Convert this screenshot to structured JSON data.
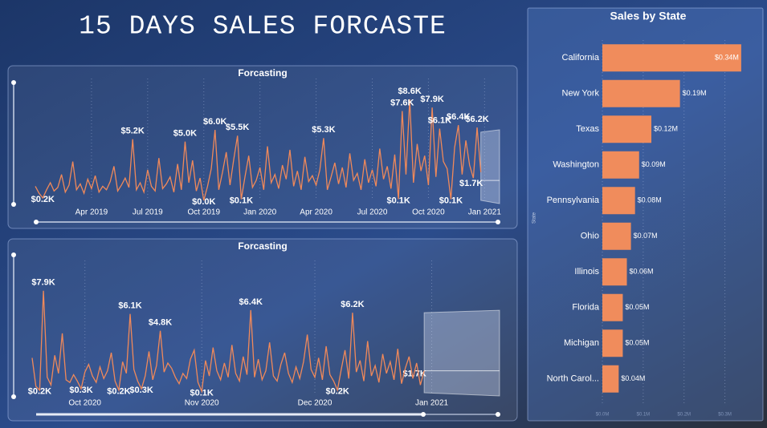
{
  "title": "15 DAYS SALES FORCASTE",
  "chart_data": [
    {
      "type": "line",
      "title": "Forcasting",
      "color": "#f0895a",
      "grid": true,
      "xlim": [
        0,
        124
      ],
      "ylim": [
        0,
        9000
      ],
      "xticks": [
        {
          "value": 15,
          "label": "Apr 2019"
        },
        {
          "value": 30,
          "label": "Jul 2019"
        },
        {
          "value": 45,
          "label": "Oct 2019"
        },
        {
          "value": 60,
          "label": "Jan 2020"
        },
        {
          "value": 75,
          "label": "Apr 2020"
        },
        {
          "value": 90,
          "label": "Jul 2020"
        },
        {
          "value": 105,
          "label": "Oct 2020"
        },
        {
          "value": 120,
          "label": "Jan 2021"
        }
      ],
      "values": [
        1200,
        600,
        200,
        900,
        1500,
        800,
        1100,
        2200,
        700,
        1300,
        3300,
        900,
        1400,
        600,
        1800,
        1000,
        2100,
        700,
        1200,
        900,
        1600,
        2900,
        800,
        1300,
        1900,
        1100,
        5200,
        900,
        1500,
        700,
        2600,
        1200,
        800,
        3600,
        1000,
        1400,
        2000,
        700,
        3100,
        900,
        5000,
        1500,
        3400,
        800,
        1900,
        0,
        1200,
        2700,
        6000,
        900,
        2400,
        4100,
        1300,
        3500,
        5500,
        100,
        2000,
        3800,
        1100,
        1700,
        2800,
        900,
        4600,
        1500,
        2200,
        1000,
        3000,
        1800,
        4300,
        1200,
        2500,
        900,
        3700,
        1600,
        2100,
        1300,
        2600,
        5300,
        900,
        2000,
        3200,
        1400,
        2800,
        1100,
        4000,
        1700,
        2300,
        900,
        3500,
        1500,
        2600,
        1200,
        4400,
        1800,
        2900,
        1000,
        3900,
        100,
        7600,
        2200,
        8600,
        1500,
        4800,
        2500,
        3800,
        1300,
        7900,
        2000,
        6100,
        3300,
        2700,
        100,
        4500,
        6400,
        2200,
        5100,
        3000,
        1900,
        6200,
        2400
      ],
      "value_labels": [
        null,
        null,
        "$0.2K",
        null,
        null,
        null,
        null,
        null,
        null,
        null,
        null,
        null,
        null,
        null,
        null,
        null,
        null,
        null,
        null,
        null,
        null,
        null,
        null,
        null,
        null,
        null,
        "$5.2K",
        null,
        null,
        null,
        null,
        null,
        null,
        null,
        null,
        null,
        null,
        null,
        null,
        null,
        "$5.0K",
        null,
        null,
        null,
        null,
        "$0.0K",
        null,
        null,
        "$6.0K",
        null,
        null,
        null,
        null,
        null,
        "$5.5K",
        "$0.1K",
        null,
        null,
        null,
        null,
        null,
        null,
        null,
        null,
        null,
        null,
        null,
        null,
        null,
        null,
        null,
        null,
        null,
        null,
        null,
        null,
        null,
        "$5.3K",
        null,
        null,
        null,
        null,
        null,
        null,
        null,
        null,
        null,
        null,
        null,
        null,
        null,
        null,
        null,
        null,
        null,
        null,
        null,
        "$0.1K",
        "$7.6K",
        null,
        "$8.6K",
        null,
        null,
        null,
        null,
        null,
        "$7.9K",
        null,
        "$6.1K",
        null,
        null,
        "$0.1K",
        null,
        "$6.4K",
        null,
        null,
        null,
        null,
        "$6.2K",
        null
      ],
      "forecast": {
        "value": 1700,
        "value_label": "$1.7K",
        "upper": 5800,
        "lower": 0
      }
    },
    {
      "type": "line",
      "title": "Forcasting",
      "color": "#f0895a",
      "grid": true,
      "xlim": [
        0,
        124
      ],
      "ylim": [
        0,
        9000
      ],
      "xticks": [
        {
          "value": 14,
          "label": "Oct 2020"
        },
        {
          "value": 45,
          "label": "Nov 2020"
        },
        {
          "value": 75,
          "label": "Dec 2020"
        },
        {
          "value": 106,
          "label": "Jan 2021"
        }
      ],
      "values": [
        2700,
        500,
        200,
        7900,
        1200,
        600,
        2900,
        1500,
        4600,
        1000,
        800,
        1400,
        900,
        300,
        1600,
        2200,
        1300,
        800,
        2000,
        1100,
        1700,
        3100,
        900,
        200,
        2400,
        1500,
        6100,
        1800,
        900,
        300,
        1300,
        3200,
        1000,
        2100,
        4800,
        1600,
        2300,
        1900,
        1200,
        700,
        1500,
        1100,
        2600,
        3300,
        800,
        100,
        2500,
        1300,
        3500,
        1700,
        1000,
        2300,
        1200,
        3700,
        1500,
        900,
        2800,
        1400,
        6400,
        1200,
        2600,
        1000,
        1700,
        3900,
        1300,
        900,
        2200,
        3100,
        1500,
        800,
        2000,
        1100,
        2400,
        4500,
        1800,
        1200,
        2700,
        1000,
        3600,
        1400,
        900,
        200,
        1800,
        3300,
        1100,
        6200,
        1600,
        2500,
        900,
        4000,
        1300,
        2100,
        800,
        3000,
        1500,
        2400,
        1000,
        3400,
        700,
        1900,
        2800,
        1100,
        2300,
        600,
        1700
      ],
      "value_labels": [
        null,
        null,
        "$0.2K",
        "$7.9K",
        null,
        null,
        null,
        null,
        null,
        null,
        null,
        null,
        null,
        "$0.3K",
        null,
        null,
        null,
        null,
        null,
        null,
        null,
        null,
        null,
        "$0.2K",
        null,
        null,
        "$6.1K",
        null,
        null,
        "$0.3K",
        null,
        null,
        null,
        null,
        "$4.8K",
        null,
        null,
        null,
        null,
        null,
        null,
        null,
        null,
        null,
        null,
        "$0.1K",
        null,
        null,
        null,
        null,
        null,
        null,
        null,
        null,
        null,
        null,
        null,
        null,
        "$6.4K",
        null,
        null,
        null,
        null,
        null,
        null,
        null,
        null,
        null,
        null,
        null,
        null,
        null,
        null,
        null,
        null,
        null,
        null,
        null,
        null,
        null,
        null,
        "$0.2K",
        null,
        null,
        null,
        "$6.2K",
        null,
        null,
        null,
        null,
        null,
        null,
        null,
        null,
        null,
        null,
        null,
        null,
        null,
        null,
        null,
        null,
        null,
        null,
        null
      ],
      "forecast": {
        "value": 1700,
        "value_label": "$1.7K",
        "upper": 6200,
        "lower": 0
      }
    },
    {
      "type": "bar",
      "orientation": "horizontal",
      "title": "Sales by State",
      "y_label": "State",
      "color": "#f08c5c",
      "grid": true,
      "categories": [
        "California",
        "New York",
        "Texas",
        "Washington",
        "Pennsylvania",
        "Ohio",
        "Illinois",
        "Florida",
        "Michigan",
        "North Carol..."
      ],
      "values": [
        340000,
        190000,
        120000,
        90000,
        80000,
        70000,
        60000,
        50000,
        50000,
        40000
      ],
      "value_labels": [
        "$0.34M",
        "$0.19M",
        "$0.12M",
        "$0.09M",
        "$0.08M",
        "$0.07M",
        "$0.06M",
        "$0.05M",
        "$0.05M",
        "$0.04M"
      ],
      "xlim": [
        0,
        350000
      ],
      "xticks": [
        {
          "value": 0,
          "label": "$0.0M"
        },
        {
          "value": 100000,
          "label": "$0.1M"
        },
        {
          "value": 200000,
          "label": "$0.2M"
        },
        {
          "value": 300000,
          "label": "$0.3M"
        }
      ]
    }
  ]
}
